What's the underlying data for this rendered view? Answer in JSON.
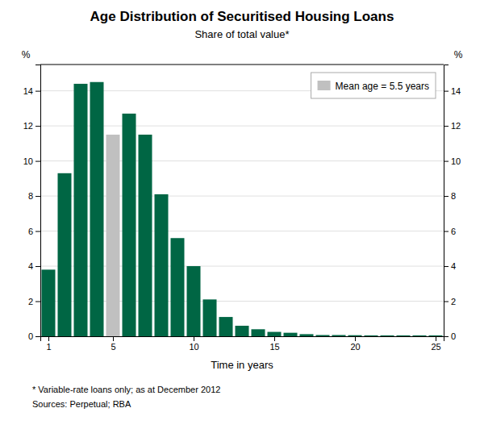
{
  "chart_data": {
    "type": "bar",
    "title": "Age Distribution of Securitised Housing Loans",
    "subtitle": "Share of total value*",
    "xlabel": "Time in years",
    "ylabel": "%",
    "y2label": "%",
    "footnotes": [
      "*    Variable-rate loans only; as at December 2012",
      "Sources: Perpetual; RBA"
    ],
    "x": [
      1,
      2,
      3,
      4,
      5,
      6,
      7,
      8,
      9,
      10,
      11,
      12,
      13,
      14,
      15,
      16,
      17,
      18,
      19,
      20,
      21,
      22,
      23,
      24,
      25
    ],
    "values": [
      3.8,
      9.3,
      14.4,
      14.5,
      11.5,
      12.7,
      11.5,
      8.1,
      5.6,
      4.0,
      2.1,
      1.1,
      0.6,
      0.4,
      0.25,
      0.2,
      0.12,
      0.07,
      0.07,
      0.06,
      0.05,
      0.05,
      0.05,
      0.05,
      0.05
    ],
    "colors": [
      "#006644",
      "#006644",
      "#006644",
      "#006644",
      "#c0c0c0",
      "#006644",
      "#006644",
      "#006644",
      "#006644",
      "#006644",
      "#006644",
      "#006644",
      "#006644",
      "#006644",
      "#006644",
      "#006644",
      "#006644",
      "#006644",
      "#006644",
      "#006644",
      "#006644",
      "#006644",
      "#006644",
      "#006644",
      "#006644"
    ],
    "xlim": [
      0.5,
      25.5
    ],
    "xticks": [
      1,
      5,
      10,
      15,
      20,
      25
    ],
    "ylim": [
      0,
      15.5
    ],
    "yticks": [
      0,
      2,
      4,
      6,
      8,
      10,
      12,
      14
    ],
    "y2lim": [
      0,
      15.5
    ],
    "y2ticks": [
      0,
      2,
      4,
      6,
      8,
      10,
      12,
      14
    ],
    "grid": true,
    "legend": "upper right",
    "legend_entries": [
      {
        "label": "Mean age = 5.5 years",
        "color": "#c0c0c0"
      }
    ]
  }
}
